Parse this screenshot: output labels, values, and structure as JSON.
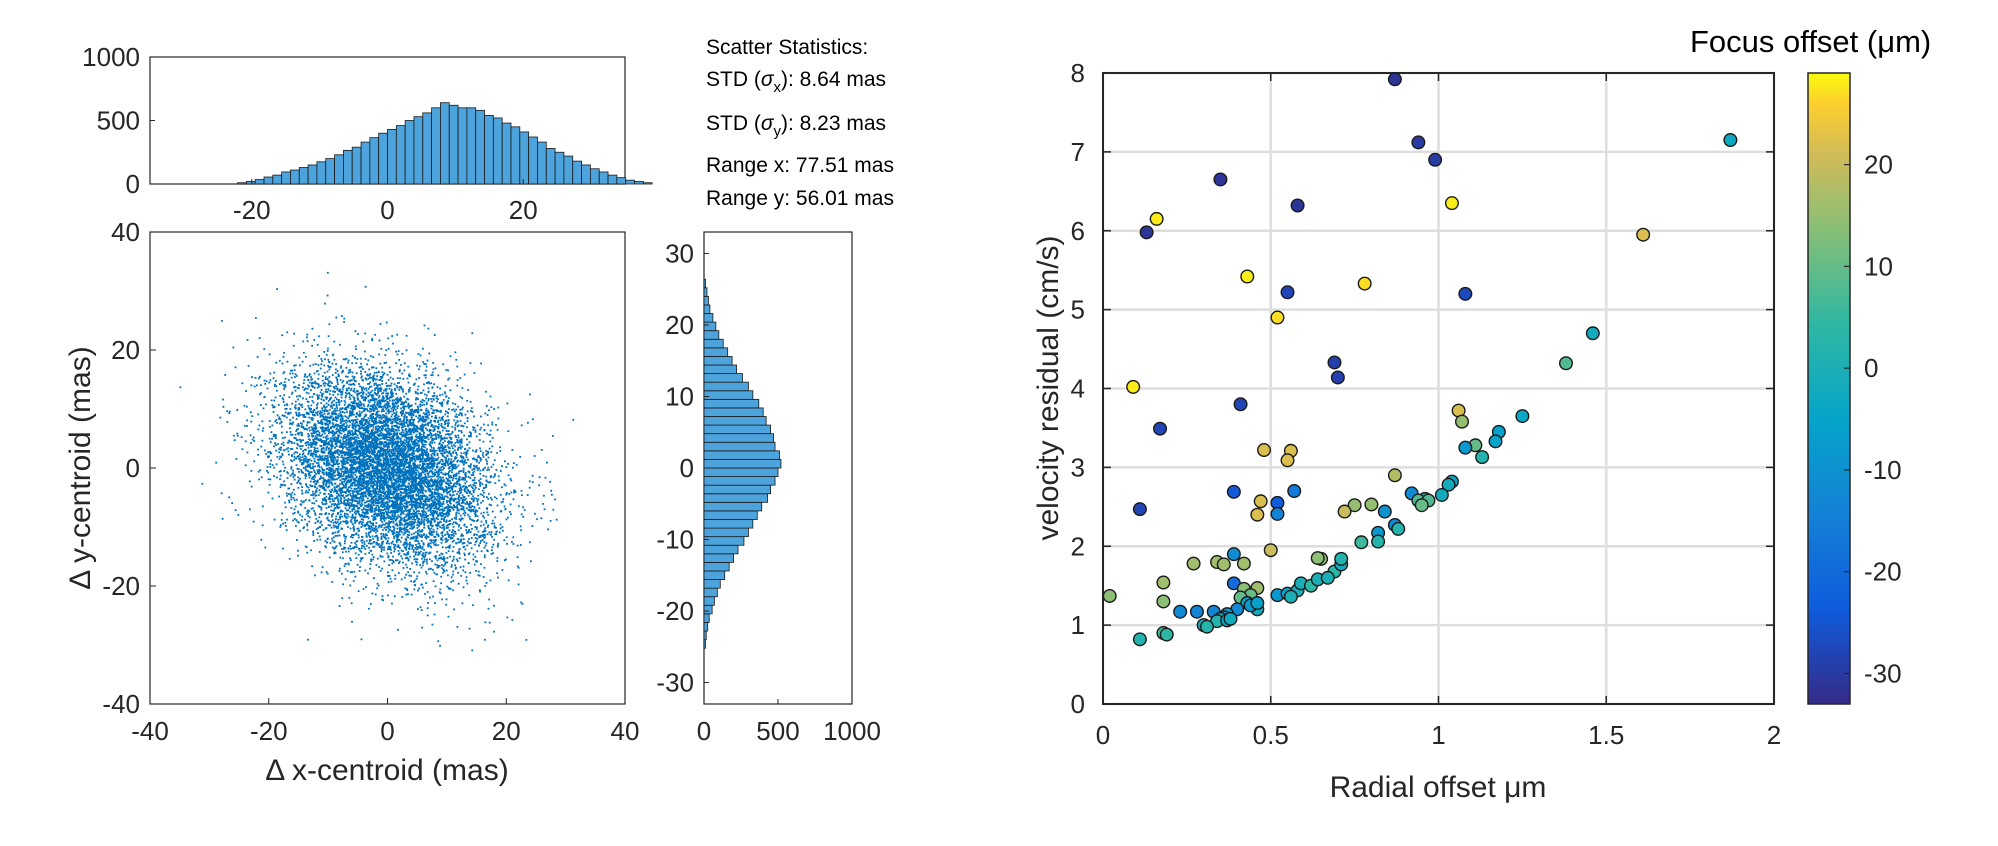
{
  "stats": {
    "title": "Scatter Statistics:",
    "std_x": {
      "prefix": "STD (",
      "sym": "σ",
      "sub": "x",
      "suffix": "): 8.64 mas"
    },
    "std_y": {
      "prefix": "STD (",
      "sym": "σ",
      "sub": "y",
      "suffix": "): 8.23 mas"
    },
    "range_x": "Range x: 77.51 mas",
    "range_y": "Range y: 56.01 mas"
  },
  "chart_data": [
    {
      "id": "top-histogram",
      "type": "bar",
      "description": "Histogram of Δ x-centroid",
      "bin_width": 1.3,
      "bin_start": -22.1,
      "values": [
        10,
        20,
        35,
        55,
        70,
        95,
        110,
        130,
        150,
        175,
        200,
        230,
        265,
        290,
        330,
        365,
        400,
        430,
        460,
        500,
        530,
        560,
        600,
        640,
        620,
        600,
        600,
        580,
        540,
        520,
        480,
        450,
        410,
        370,
        330,
        280,
        250,
        220,
        180,
        150,
        120,
        95,
        70,
        50,
        30,
        20,
        10
      ],
      "xlim": [
        -35,
        35
      ],
      "ylim": [
        0,
        1000
      ],
      "xticks": [
        -20,
        0,
        20
      ],
      "yticks": [
        0,
        500,
        1000
      ],
      "bar_color": "#4da3dc"
    },
    {
      "id": "centroid-scatter",
      "type": "scatter",
      "xlabel": "Δ x-centroid (mas)",
      "ylabel": "Δ y-centroid (mas)",
      "xlim": [
        -40,
        40
      ],
      "ylim": [
        -40,
        40
      ],
      "xticks": [
        -40,
        -20,
        0,
        20,
        40
      ],
      "yticks": [
        -40,
        -20,
        0,
        20,
        40
      ],
      "n_points": 9000,
      "sigma_x": 8.64,
      "sigma_y": 8.23,
      "correlation": -0.3,
      "point_color": "#0072bd"
    },
    {
      "id": "right-histogram",
      "type": "bar",
      "orientation": "horizontal",
      "description": "Histogram of Δ y-centroid",
      "bin_width": 1.2,
      "bin_start": -25.2,
      "values": [
        10,
        15,
        25,
        35,
        55,
        70,
        90,
        110,
        140,
        170,
        200,
        230,
        270,
        300,
        330,
        360,
        390,
        430,
        450,
        480,
        500,
        520,
        510,
        480,
        470,
        450,
        420,
        400,
        370,
        330,
        300,
        260,
        220,
        190,
        160,
        130,
        100,
        80,
        60,
        40,
        30,
        20,
        10
      ],
      "xlim": [
        0,
        1000
      ],
      "ylim": [
        -33,
        33
      ],
      "xticks": [
        0,
        500,
        1000
      ],
      "yticks": [
        -30,
        -20,
        -10,
        0,
        10,
        20,
        30
      ],
      "bar_color": "#4da3dc"
    },
    {
      "id": "velocity-scatter",
      "type": "scatter",
      "xlabel": "Radial offset μm",
      "ylabel": "velocity residual (cm/s)",
      "xlim": [
        0,
        2
      ],
      "ylim": [
        0,
        8
      ],
      "xticks": [
        "0",
        "0.5",
        "1",
        "1.5",
        "2"
      ],
      "yticks": [
        "0",
        "1",
        "2",
        "3",
        "4",
        "5",
        "6",
        "7",
        "8"
      ],
      "grid": true,
      "colorbar": {
        "title": "Focus offset (μm)",
        "clim": [
          -33,
          29
        ],
        "ticks": [
          20,
          10,
          0,
          -10,
          -20,
          -30
        ],
        "colormap": "parula"
      },
      "points": [
        {
          "x": 0.87,
          "y": 7.92,
          "c": -31
        },
        {
          "x": 0.94,
          "y": 7.12,
          "c": -30
        },
        {
          "x": 0.99,
          "y": 6.9,
          "c": -30
        },
        {
          "x": 0.35,
          "y": 6.65,
          "c": -31
        },
        {
          "x": 0.58,
          "y": 6.32,
          "c": -31
        },
        {
          "x": 0.13,
          "y": 5.98,
          "c": -31
        },
        {
          "x": 0.16,
          "y": 6.15,
          "c": 28
        },
        {
          "x": 1.04,
          "y": 6.35,
          "c": 28
        },
        {
          "x": 1.61,
          "y": 5.95,
          "c": 22
        },
        {
          "x": 1.87,
          "y": 7.15,
          "c": -3
        },
        {
          "x": 0.43,
          "y": 5.42,
          "c": 28
        },
        {
          "x": 0.55,
          "y": 5.22,
          "c": -28
        },
        {
          "x": 0.52,
          "y": 4.9,
          "c": 27
        },
        {
          "x": 0.78,
          "y": 5.33,
          "c": 27
        },
        {
          "x": 1.08,
          "y": 5.2,
          "c": -27
        },
        {
          "x": 0.69,
          "y": 4.33,
          "c": -29
        },
        {
          "x": 0.7,
          "y": 4.14,
          "c": -29
        },
        {
          "x": 0.09,
          "y": 4.02,
          "c": 28
        },
        {
          "x": 0.41,
          "y": 3.8,
          "c": -28
        },
        {
          "x": 0.17,
          "y": 3.49,
          "c": -28
        },
        {
          "x": 1.46,
          "y": 4.7,
          "c": -2
        },
        {
          "x": 1.38,
          "y": 4.32,
          "c": 8
        },
        {
          "x": 1.06,
          "y": 3.72,
          "c": 22
        },
        {
          "x": 1.07,
          "y": 3.58,
          "c": 15
        },
        {
          "x": 1.25,
          "y": 3.65,
          "c": -4
        },
        {
          "x": 0.48,
          "y": 3.22,
          "c": 22
        },
        {
          "x": 0.56,
          "y": 3.21,
          "c": 22
        },
        {
          "x": 0.55,
          "y": 3.09,
          "c": 22
        },
        {
          "x": 1.18,
          "y": 3.45,
          "c": -6
        },
        {
          "x": 1.11,
          "y": 3.28,
          "c": 10
        },
        {
          "x": 1.08,
          "y": 3.25,
          "c": -8
        },
        {
          "x": 1.17,
          "y": 3.33,
          "c": -5
        },
        {
          "x": 1.13,
          "y": 3.13,
          "c": 2
        },
        {
          "x": 0.87,
          "y": 2.9,
          "c": 18
        },
        {
          "x": 0.11,
          "y": 2.47,
          "c": -28
        },
        {
          "x": 0.39,
          "y": 2.69,
          "c": -24
        },
        {
          "x": 0.57,
          "y": 2.7,
          "c": -16
        },
        {
          "x": 0.47,
          "y": 2.57,
          "c": 22
        },
        {
          "x": 0.46,
          "y": 2.4,
          "c": 22
        },
        {
          "x": 0.52,
          "y": 2.55,
          "c": -24
        },
        {
          "x": 0.52,
          "y": 2.41,
          "c": -14
        },
        {
          "x": 1.04,
          "y": 2.82,
          "c": -4
        },
        {
          "x": 1.03,
          "y": 2.78,
          "c": -2
        },
        {
          "x": 0.92,
          "y": 2.67,
          "c": -12
        },
        {
          "x": 0.96,
          "y": 2.6,
          "c": 4
        },
        {
          "x": 0.94,
          "y": 2.58,
          "c": 8
        },
        {
          "x": 0.97,
          "y": 2.58,
          "c": 8
        },
        {
          "x": 0.95,
          "y": 2.52,
          "c": 10
        },
        {
          "x": 1.01,
          "y": 2.65,
          "c": -2
        },
        {
          "x": 0.8,
          "y": 2.53,
          "c": 15
        },
        {
          "x": 0.75,
          "y": 2.52,
          "c": 15
        },
        {
          "x": 0.72,
          "y": 2.44,
          "c": 20
        },
        {
          "x": 0.84,
          "y": 2.44,
          "c": -10
        },
        {
          "x": 0.87,
          "y": 2.27,
          "c": -12
        },
        {
          "x": 0.82,
          "y": 2.17,
          "c": -8
        },
        {
          "x": 0.88,
          "y": 2.22,
          "c": 2
        },
        {
          "x": 0.77,
          "y": 2.05,
          "c": 6
        },
        {
          "x": 0.82,
          "y": 2.06,
          "c": 2
        },
        {
          "x": 0.39,
          "y": 1.9,
          "c": -12
        },
        {
          "x": 0.34,
          "y": 1.8,
          "c": 16
        },
        {
          "x": 0.36,
          "y": 1.77,
          "c": 16
        },
        {
          "x": 0.27,
          "y": 1.78,
          "c": 16
        },
        {
          "x": 0.42,
          "y": 1.78,
          "c": 16
        },
        {
          "x": 0.5,
          "y": 1.95,
          "c": 20
        },
        {
          "x": 0.18,
          "y": 1.54,
          "c": 16
        },
        {
          "x": 0.02,
          "y": 1.37,
          "c": 14
        },
        {
          "x": 0.39,
          "y": 1.53,
          "c": -20
        },
        {
          "x": 0.18,
          "y": 1.3,
          "c": 14
        },
        {
          "x": 0.42,
          "y": 1.46,
          "c": 14
        },
        {
          "x": 0.46,
          "y": 1.47,
          "c": 16
        },
        {
          "x": 0.44,
          "y": 1.38,
          "c": 10
        },
        {
          "x": 0.41,
          "y": 1.35,
          "c": 10
        },
        {
          "x": 0.52,
          "y": 1.38,
          "c": -8
        },
        {
          "x": 0.55,
          "y": 1.4,
          "c": -6
        },
        {
          "x": 0.58,
          "y": 1.44,
          "c": 0
        },
        {
          "x": 0.59,
          "y": 1.53,
          "c": 0
        },
        {
          "x": 0.62,
          "y": 1.5,
          "c": 4
        },
        {
          "x": 0.64,
          "y": 1.58,
          "c": 0
        },
        {
          "x": 0.65,
          "y": 1.84,
          "c": 14
        },
        {
          "x": 0.64,
          "y": 1.85,
          "c": 14
        },
        {
          "x": 0.69,
          "y": 1.68,
          "c": 4
        },
        {
          "x": 0.67,
          "y": 1.6,
          "c": 0
        },
        {
          "x": 0.71,
          "y": 1.77,
          "c": -2
        },
        {
          "x": 0.71,
          "y": 1.84,
          "c": 2
        },
        {
          "x": 0.43,
          "y": 1.28,
          "c": -6
        },
        {
          "x": 0.46,
          "y": 1.2,
          "c": -2
        },
        {
          "x": 0.44,
          "y": 1.25,
          "c": -8
        },
        {
          "x": 0.56,
          "y": 1.36,
          "c": 0
        },
        {
          "x": 0.4,
          "y": 1.2,
          "c": -12
        },
        {
          "x": 0.33,
          "y": 1.17,
          "c": -14
        },
        {
          "x": 0.37,
          "y": 1.14,
          "c": -8
        },
        {
          "x": 0.36,
          "y": 1.1,
          "c": -12
        },
        {
          "x": 0.35,
          "y": 1.08,
          "c": -2
        },
        {
          "x": 0.34,
          "y": 1.05,
          "c": 2
        },
        {
          "x": 0.3,
          "y": 1.0,
          "c": -2
        },
        {
          "x": 0.31,
          "y": 0.98,
          "c": 2
        },
        {
          "x": 0.28,
          "y": 1.17,
          "c": -14
        },
        {
          "x": 0.23,
          "y": 1.17,
          "c": -12
        },
        {
          "x": 0.18,
          "y": 0.9,
          "c": 6
        },
        {
          "x": 0.19,
          "y": 0.88,
          "c": 4
        },
        {
          "x": 0.11,
          "y": 0.82,
          "c": 2
        },
        {
          "x": 0.37,
          "y": 1.06,
          "c": -4
        },
        {
          "x": 0.38,
          "y": 1.08,
          "c": -2
        },
        {
          "x": 0.46,
          "y": 1.28,
          "c": -6
        }
      ]
    }
  ]
}
